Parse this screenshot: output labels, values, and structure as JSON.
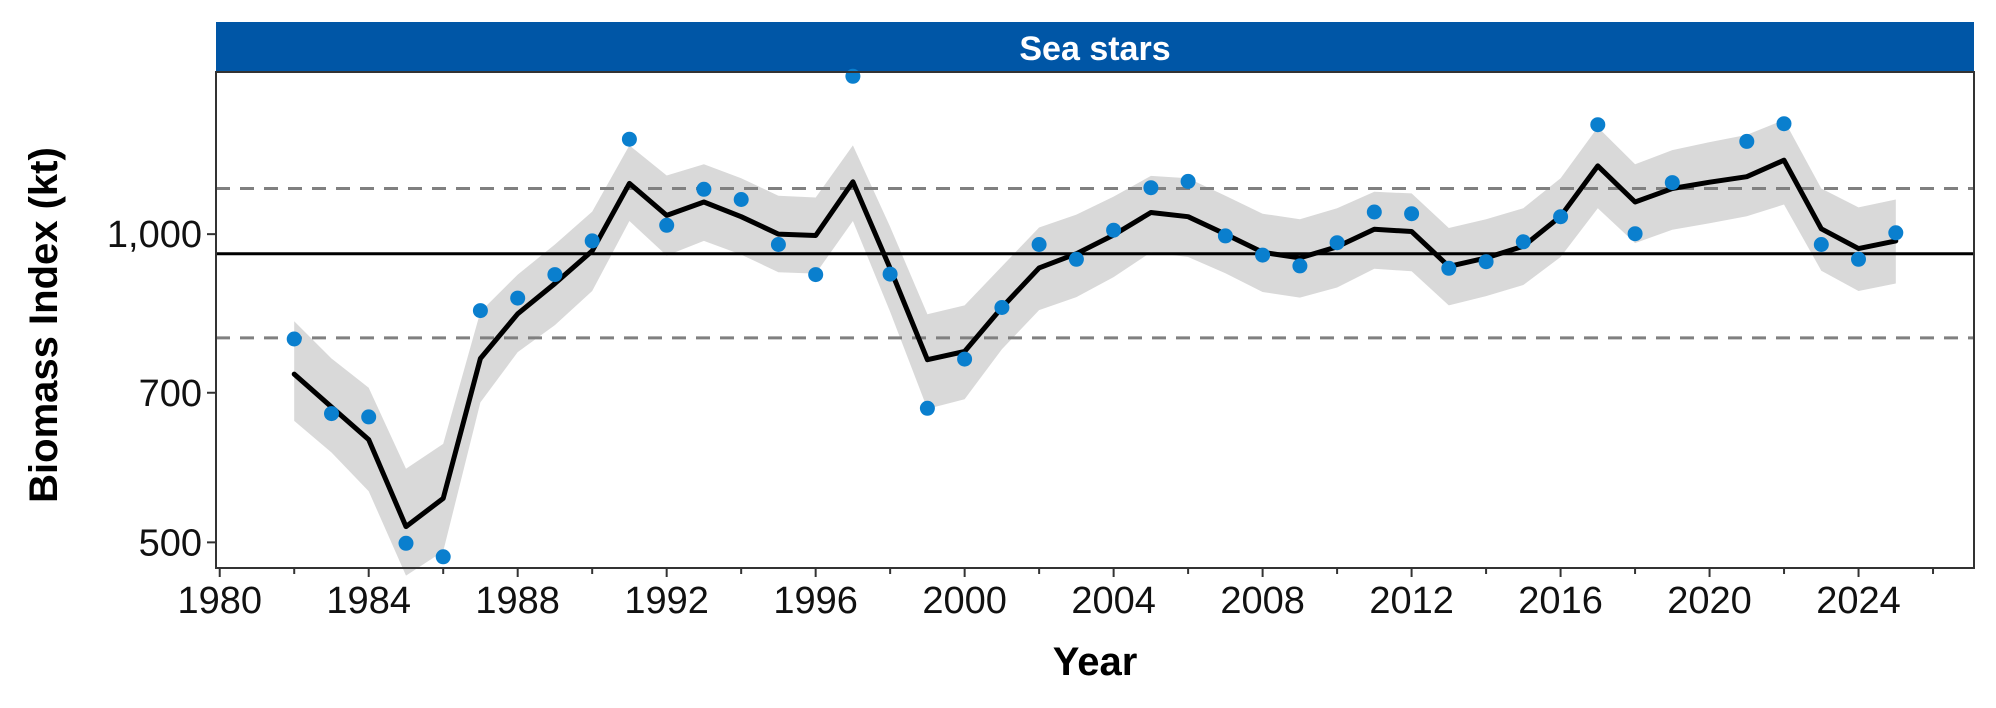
{
  "chart_data": {
    "type": "line",
    "panel_title": "Sea stars",
    "xlabel": "Year",
    "ylabel": "Biomass Index (kt)",
    "x_ticks": [
      1980,
      1984,
      1988,
      1992,
      1996,
      2000,
      2004,
      2008,
      2012,
      2016,
      2020,
      2024
    ],
    "y_ticks": [
      {
        "value": 500,
        "label": "500"
      },
      {
        "value": 700,
        "label": "700"
      },
      {
        "value": 1000,
        "label": "1,000"
      }
    ],
    "y_scale": "log",
    "xlim": [
      1979.9,
      2027.1
    ],
    "ylim": [
      472,
      1440
    ],
    "grid": false,
    "colors": {
      "strip": "#0056a6",
      "points": "#0a7fce",
      "trend": "#000000",
      "ribbon": "#d9d9d9",
      "mean_line": "#000000",
      "bound_lines": "#808080"
    },
    "reference_lines": {
      "mean": 957,
      "upper": 1108,
      "lower": 792
    },
    "series": [
      {
        "kind": "points",
        "x": [
          1982,
          1983,
          1984,
          1985,
          1986,
          1987,
          1988,
          1989,
          1990,
          1991,
          1992,
          1993,
          1994,
          1995,
          1996,
          1997,
          1998,
          1999,
          2000,
          2001,
          2002,
          2003,
          2004,
          2005,
          2006,
          2007,
          2008,
          2009,
          2010,
          2011,
          2012,
          2013,
          2014,
          2015,
          2016,
          2017,
          2018,
          2019,
          2021,
          2022,
          2023,
          2024,
          2025
        ],
        "y": [
          790,
          668,
          663,
          499,
          484,
          842,
          866,
          913,
          985,
          1238,
          1020,
          1106,
          1081,
          977,
          913,
          1426,
          914,
          676,
          755,
          848,
          977,
          945,
          1009,
          1110,
          1126,
          996,
          954,
          931,
          981,
          1051,
          1047,
          926,
          940,
          983,
          1040,
          1279,
          1001,
          1123,
          1232,
          1282,
          977,
          945,
          1003
        ]
      },
      {
        "kind": "trend",
        "x": [
          1982,
          1983,
          1984,
          1985,
          1986,
          1987,
          1988,
          1989,
          1990,
          1991,
          1992,
          1993,
          1994,
          1995,
          1996,
          1997,
          1998,
          1999,
          2000,
          2001,
          2002,
          2003,
          2004,
          2005,
          2006,
          2007,
          2008,
          2009,
          2010,
          2011,
          2012,
          2013,
          2014,
          2015,
          2016,
          2017,
          2018,
          2019,
          2020,
          2021,
          2022,
          2023,
          2024,
          2025
        ],
        "y": [
          730,
          678,
          630,
          518,
          552,
          756,
          836,
          895,
          963,
          1121,
          1043,
          1075,
          1040,
          1000,
          997,
          1125,
          926,
          754,
          768,
          848,
          927,
          957,
          998,
          1050,
          1040,
          1000,
          960,
          948,
          972,
          1011,
          1006,
          930,
          948,
          973,
          1041,
          1166,
          1075,
          1108,
          1124,
          1138,
          1181,
          1012,
          968,
          985
        ],
        "lower": [
          657,
          612,
          561,
          464,
          490,
          685,
          767,
          815,
          880,
          1030,
          953,
          985,
          955,
          918,
          915,
          1030,
          840,
          675,
          690,
          772,
          843,
          868,
          908,
          960,
          950,
          916,
          878,
          867,
          887,
          925,
          920,
          852,
          870,
          892,
          950,
          1060,
          980,
          1010,
          1025,
          1041,
          1069,
          921,
          880,
          895
        ],
        "upper": [
          822,
          756,
          708,
          590,
          624,
          840,
          913,
          977,
          1052,
          1221,
          1141,
          1170,
          1134,
          1090,
          1086,
          1221,
          1017,
          835,
          852,
          930,
          1015,
          1045,
          1088,
          1140,
          1134,
          1090,
          1047,
          1034,
          1060,
          1100,
          1096,
          1014,
          1034,
          1060,
          1134,
          1272,
          1170,
          1208,
          1230,
          1250,
          1293,
          1108,
          1062,
          1081
        ]
      }
    ]
  }
}
